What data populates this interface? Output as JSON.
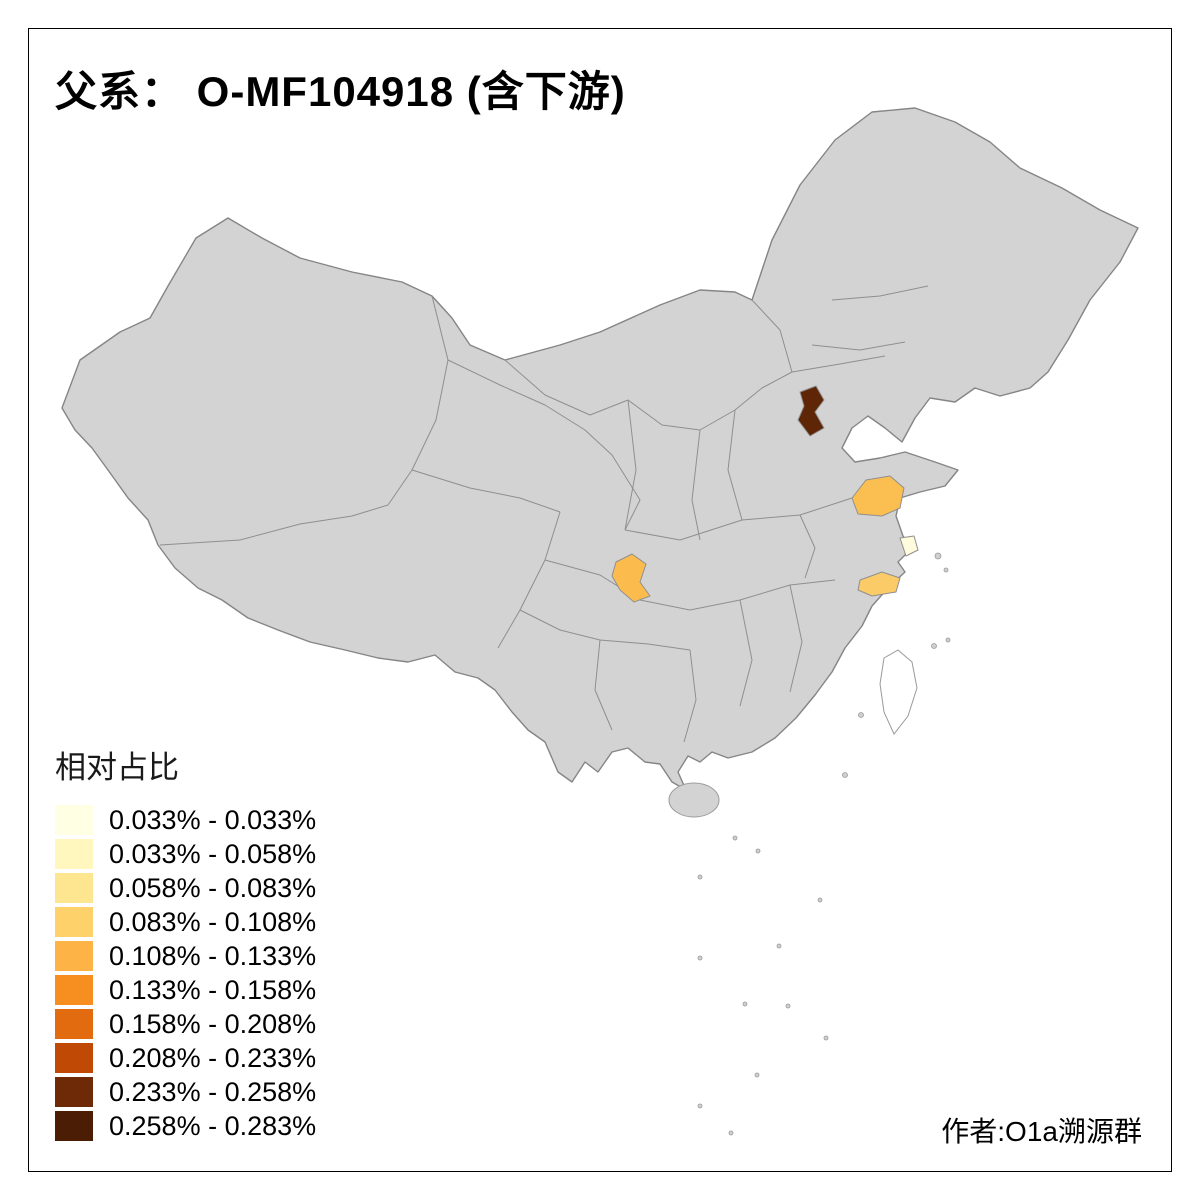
{
  "title": "父系： O-MF104918 (含下游)",
  "credit": "作者:O1a溯源群",
  "legend": {
    "title": "相对占比",
    "items": [
      {
        "label": "0.033% - 0.033%",
        "color": "#FFFFE3"
      },
      {
        "label": "0.033% - 0.058%",
        "color": "#FFF7BD"
      },
      {
        "label": "0.058% - 0.083%",
        "color": "#FEE690"
      },
      {
        "label": "0.083% - 0.108%",
        "color": "#FED16A"
      },
      {
        "label": "0.108% - 0.133%",
        "color": "#FDB345"
      },
      {
        "label": "0.133% - 0.158%",
        "color": "#F78E20"
      },
      {
        "label": "0.158% - 0.208%",
        "color": "#E26A0F"
      },
      {
        "label": "0.208% - 0.233%",
        "color": "#C04A05"
      },
      {
        "label": "0.233% - 0.258%",
        "color": "#6E2A06"
      },
      {
        "label": "0.258% - 0.283%",
        "color": "#4C1D05"
      }
    ]
  },
  "map": {
    "land_color": "#D3D3D3",
    "border_color": "#8F8F8F",
    "sea_color": "#FFFFFF",
    "regions": {
      "tianjin": {
        "color": "#5E2506",
        "range": "0.258% - 0.283%"
      },
      "jiangsu": {
        "color": "#FBBE50",
        "range": "0.083% - 0.108%"
      },
      "shanghai": {
        "color": "#FFFBDD",
        "range": "0.033% - 0.033%"
      },
      "zhejiang": {
        "color": "#FACB66",
        "range": "0.058% - 0.083%"
      },
      "chongqing": {
        "color": "#FBBC4D",
        "range": "0.083% - 0.108%"
      }
    }
  }
}
